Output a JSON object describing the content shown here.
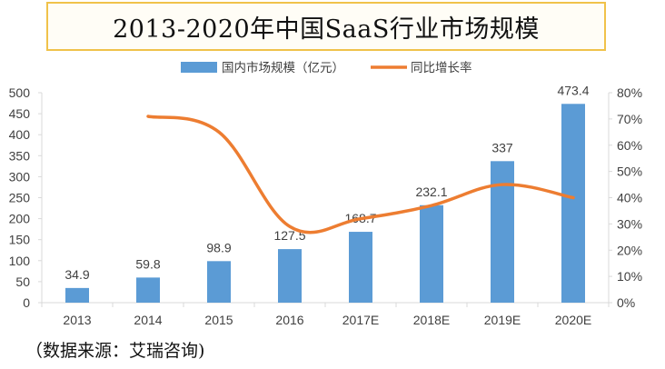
{
  "title": "2013-2020年中国SaaS行业市场规模",
  "source": "（数据来源：艾瑞咨询)",
  "colors": {
    "bar": "#5b9bd5",
    "line": "#ed7d31",
    "title_border": "#f0c24a",
    "axis": "#d9d9d9",
    "text": "#404040"
  },
  "chart_data": {
    "type": "bar+line",
    "categories": [
      "2013",
      "2014",
      "2015",
      "2016",
      "2017E",
      "2018E",
      "2019E",
      "2020E"
    ],
    "series": [
      {
        "name": "国内市场规模（亿元）",
        "type": "bar",
        "axis": "left",
        "values": [
          34.9,
          59.8,
          98.9,
          127.5,
          168.7,
          232.1,
          337,
          473.4
        ],
        "data_labels": [
          "34.9",
          "59.8",
          "98.9",
          "127.5",
          "168.7",
          "232.1",
          "337",
          "473.4"
        ]
      },
      {
        "name": "同比增长率",
        "type": "line",
        "axis": "right",
        "values": [
          null,
          0.71,
          0.65,
          0.29,
          0.32,
          0.37,
          0.45,
          0.4
        ]
      }
    ],
    "y_left": {
      "min": 0,
      "max": 500,
      "step": 50,
      "ticks": [
        "0",
        "50",
        "100",
        "150",
        "200",
        "250",
        "300",
        "350",
        "400",
        "450",
        "500"
      ]
    },
    "y_right": {
      "min": 0,
      "max": 0.8,
      "step": 0.1,
      "ticks": [
        "0%",
        "10%",
        "20%",
        "30%",
        "40%",
        "50%",
        "60%",
        "70%",
        "80%"
      ]
    },
    "legend_position": "top",
    "grid": false
  }
}
